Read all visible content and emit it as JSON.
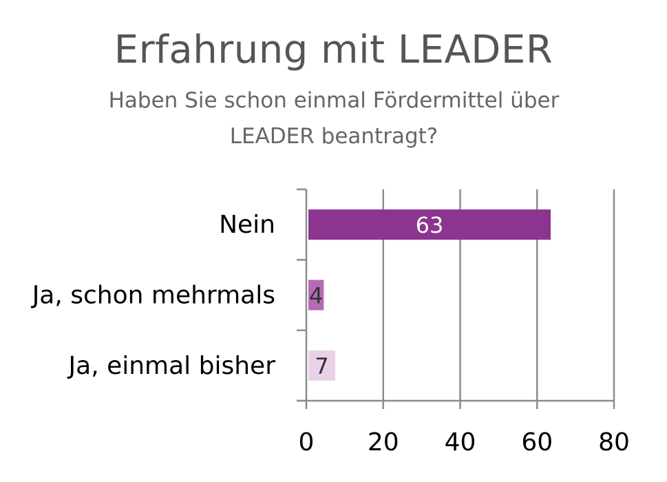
{
  "chart_data": {
    "type": "bar",
    "orientation": "horizontal",
    "title": "Erfahrung mit LEADER",
    "subtitle": "Haben Sie schon einmal Fördermittel über LEADER beantragt?",
    "categories": [
      "Nein",
      "Ja, schon mehrmals",
      "Ja, einmal bisher"
    ],
    "values": [
      63,
      4,
      7
    ],
    "data_labels": [
      "63",
      "4",
      "7"
    ],
    "bar_colors": [
      "#8B3590",
      "#B46BB3",
      "#E9D2E8"
    ],
    "data_label_colors": [
      "#ffffff",
      "#333333",
      "#333333"
    ],
    "xlim": [
      0,
      80
    ],
    "xticks": [
      0,
      20,
      40,
      60,
      80
    ],
    "xtick_labels": [
      "0",
      "20",
      "40",
      "60",
      "80"
    ],
    "xlabel": "",
    "ylabel": "",
    "grid": "vertical",
    "legend": "none"
  }
}
